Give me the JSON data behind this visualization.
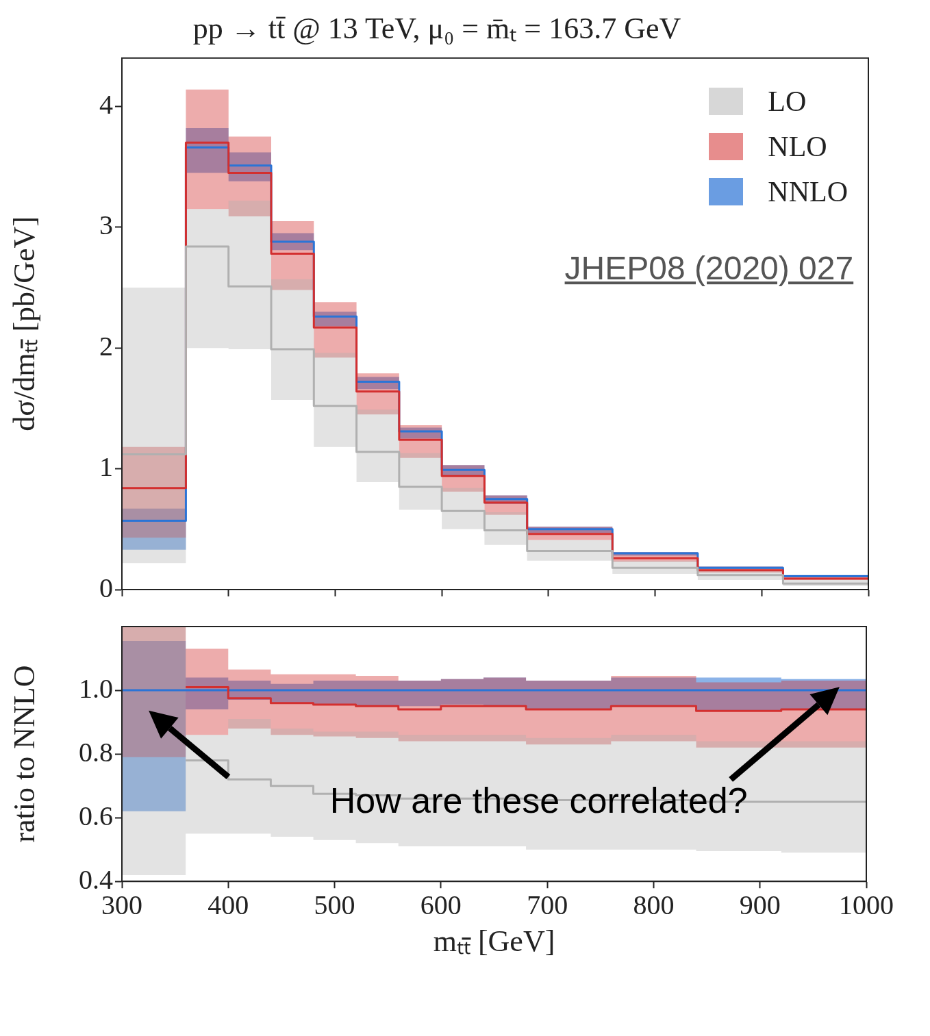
{
  "chart_data": [
    {
      "type": "step",
      "title": "pp → tt̄ @ 13 TeV, μ₀ = m̄ₜ = 163.7 GeV",
      "ylabel": "dσ/dmₜₜ̄ [pb/GeV]",
      "x": [
        300,
        360,
        400,
        440,
        480,
        520,
        560,
        600,
        640,
        680,
        760,
        840,
        920,
        1000
      ],
      "xlim": [
        300,
        1000
      ],
      "xticks": [
        300,
        400,
        500,
        600,
        700,
        800,
        900,
        1000
      ],
      "ylim": [
        0,
        4.4
      ],
      "yticks": [
        0,
        1,
        2,
        3,
        4
      ],
      "tick_labels": "y",
      "legend": "top right",
      "annotations": [
        "JHEP08 (2020) 027"
      ],
      "series": [
        {
          "name": "LO",
          "color": "#b0b0b0",
          "values": [
            1.12,
            2.84,
            2.51,
            1.99,
            1.52,
            1.14,
            0.85,
            0.65,
            0.49,
            0.32,
            0.18,
            0.12,
            0.05,
            0.05
          ],
          "lower": [
            0.22,
            2.0,
            1.99,
            1.57,
            1.18,
            0.89,
            0.66,
            0.5,
            0.37,
            0.24,
            0.13,
            0.08,
            0.03,
            0.03
          ],
          "upper": [
            2.5,
            3.15,
            3.22,
            2.57,
            1.96,
            1.49,
            1.13,
            0.84,
            0.64,
            0.41,
            0.24,
            0.16,
            0.08,
            0.08
          ]
        },
        {
          "name": "NLO",
          "color": "#d32f2f",
          "values": [
            0.84,
            3.7,
            3.45,
            2.78,
            2.17,
            1.64,
            1.24,
            0.94,
            0.72,
            0.46,
            0.26,
            0.16,
            0.09,
            0.09
          ],
          "lower": [
            0.43,
            3.15,
            3.09,
            2.48,
            1.92,
            1.45,
            1.09,
            0.81,
            0.62,
            0.41,
            0.23,
            0.14,
            0.08,
            0.08
          ],
          "upper": [
            1.18,
            4.14,
            3.75,
            3.05,
            2.38,
            1.79,
            1.36,
            1.03,
            0.78,
            0.52,
            0.31,
            0.19,
            0.11,
            0.11
          ]
        },
        {
          "name": "NNLO",
          "color": "#2b74d6",
          "values": [
            0.57,
            3.66,
            3.51,
            2.88,
            2.26,
            1.72,
            1.31,
            0.99,
            0.75,
            0.5,
            0.3,
            0.18,
            0.11,
            0.11
          ],
          "lower": [
            0.33,
            3.45,
            3.38,
            2.81,
            2.18,
            1.66,
            1.25,
            0.94,
            0.71,
            0.47,
            0.28,
            0.17,
            0.1,
            0.1
          ],
          "upper": [
            0.67,
            3.82,
            3.62,
            2.95,
            2.3,
            1.76,
            1.34,
            1.03,
            0.78,
            0.52,
            0.31,
            0.19,
            0.12,
            0.12
          ]
        }
      ]
    },
    {
      "type": "step",
      "xlabel": "mₜₜ̄ [GeV]",
      "ylabel": "ratio to NNLO",
      "x": [
        300,
        360,
        400,
        440,
        480,
        520,
        560,
        600,
        640,
        680,
        760,
        840,
        920,
        1000
      ],
      "xlim": [
        300,
        1000
      ],
      "xticks": [
        300,
        400,
        500,
        600,
        700,
        800,
        900,
        1000
      ],
      "ylim": [
        0.4,
        1.2
      ],
      "yticks": [
        0.4,
        0.6,
        0.8,
        {
          "value": 1,
          "label": "1.0"
        }
      ],
      "annotations": [
        "How are these correlated?"
      ],
      "series": [
        {
          "color": "#b0b0b0",
          "values": [
            null,
            0.78,
            0.72,
            0.7,
            0.675,
            0.67,
            0.66,
            0.66,
            0.66,
            0.655,
            0.655,
            0.65,
            0.65,
            0.65
          ],
          "lower": [
            0.42,
            0.55,
            0.55,
            0.54,
            0.53,
            0.52,
            0.51,
            0.51,
            0.51,
            0.5,
            0.5,
            0.495,
            0.49,
            0.49
          ],
          "upper": [
            1.2,
            0.86,
            0.91,
            0.88,
            0.87,
            0.87,
            0.86,
            0.86,
            0.86,
            0.85,
            0.86,
            0.84,
            0.84,
            0.84
          ]
        },
        {
          "color": "#d32f2f",
          "values": [
            null,
            1.01,
            0.975,
            0.96,
            0.955,
            0.95,
            0.94,
            0.95,
            0.95,
            0.94,
            0.95,
            0.935,
            0.94,
            0.94
          ],
          "lower": [
            0.79,
            0.86,
            0.88,
            0.86,
            0.855,
            0.85,
            0.84,
            0.84,
            0.84,
            0.83,
            0.84,
            0.82,
            0.82,
            0.82
          ],
          "upper": [
            1.2,
            1.13,
            1.065,
            1.05,
            1.05,
            1.045,
            1.03,
            1.035,
            1.04,
            1.03,
            1.045,
            1.025,
            1.03,
            1.03
          ]
        },
        {
          "color": "#2b74d6",
          "values": [
            1,
            1,
            1,
            1,
            1,
            1,
            1,
            1,
            1,
            1,
            1,
            1,
            1,
            1
          ],
          "lower": [
            0.62,
            0.94,
            0.97,
            0.96,
            0.955,
            0.95,
            0.95,
            0.955,
            0.95,
            0.94,
            0.95,
            0.935,
            0.94,
            0.94
          ],
          "upper": [
            1.155,
            1.04,
            1.03,
            1.02,
            1.03,
            1.03,
            1.03,
            1.035,
            1.04,
            1.03,
            1.04,
            1.04,
            1.035,
            1.035
          ]
        }
      ]
    }
  ]
}
